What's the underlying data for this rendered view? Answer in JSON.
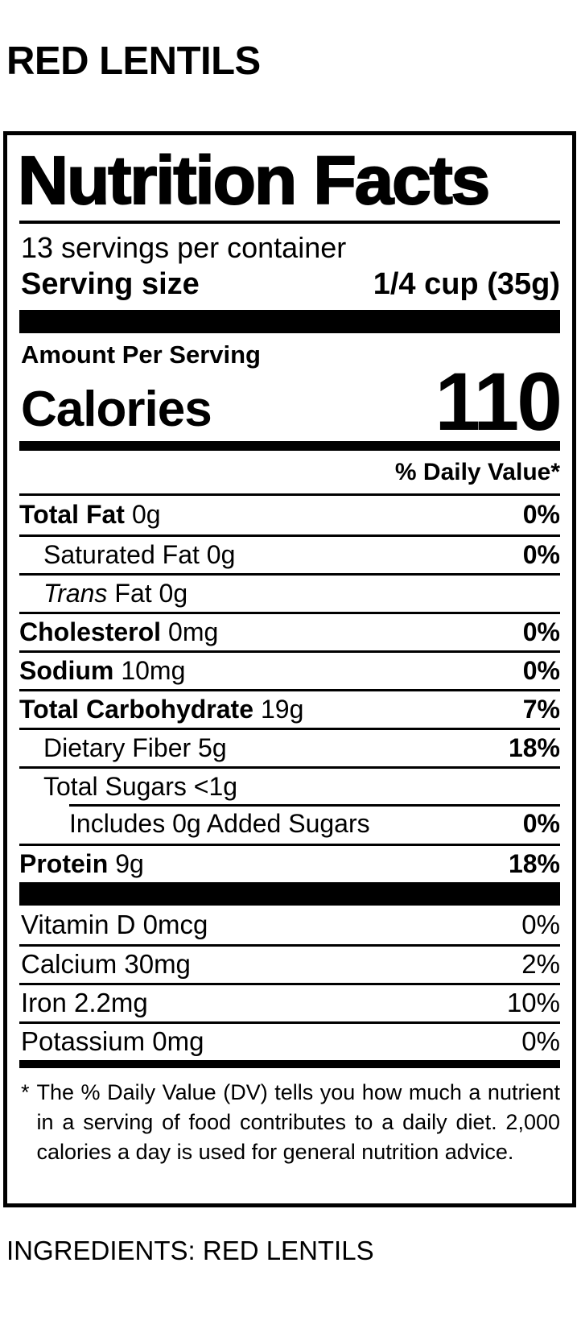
{
  "page": {
    "product_title": "RED LENTILS",
    "ingredients_line": "INGREDIENTS: RED LENTILS"
  },
  "label": {
    "title": "Nutrition Facts",
    "servings_per_container": "13 servings per container",
    "serving_size_label": "Serving size",
    "serving_size_value": "1/4 cup (35g)",
    "amount_per_serving": "Amount Per Serving",
    "calories_label": "Calories",
    "calories_value": "110",
    "daily_value_header": "% Daily Value*",
    "nutrients": [
      {
        "bold": "Total Fat",
        "italic": "",
        "regular": "0g",
        "dv": "0%"
      },
      {
        "bold": "",
        "italic": "",
        "regular": "Saturated Fat 0g",
        "dv": "0%"
      },
      {
        "bold": "",
        "italic": "Trans",
        "regular": "Fat 0g",
        "dv": ""
      },
      {
        "bold": "Cholesterol",
        "italic": "",
        "regular": "0mg",
        "dv": "0%"
      },
      {
        "bold": "Sodium",
        "italic": "",
        "regular": "10mg",
        "dv": "0%"
      },
      {
        "bold": "Total Carbohydrate",
        "italic": "",
        "regular": "19g",
        "dv": "7%"
      },
      {
        "bold": "",
        "italic": "",
        "regular": "Dietary Fiber 5g",
        "dv": "18%"
      },
      {
        "bold": "",
        "italic": "",
        "regular": "Total Sugars <1g",
        "dv": ""
      },
      {
        "bold": "",
        "italic": "",
        "regular": "Includes 0g Added Sugars",
        "dv": "0%"
      },
      {
        "bold": "Protein",
        "italic": "",
        "regular": "9g",
        "dv": "18%"
      }
    ],
    "micronutrients": [
      {
        "label": "Vitamin D 0mcg",
        "dv": "0%"
      },
      {
        "label": "Calcium 30mg",
        "dv": "2%"
      },
      {
        "label": "Iron 2.2mg",
        "dv": "10%"
      },
      {
        "label": "Potassium 0mg",
        "dv": "0%"
      }
    ],
    "footnote_marker": "*",
    "footnote": "The % Daily Value (DV) tells you how much a nutrient in a serving of food contributes to a daily diet. 2,000 calories a day is used for general nutrition advice."
  },
  "colors": {
    "text": "#000000",
    "background": "#ffffff",
    "divider": "#000000"
  }
}
